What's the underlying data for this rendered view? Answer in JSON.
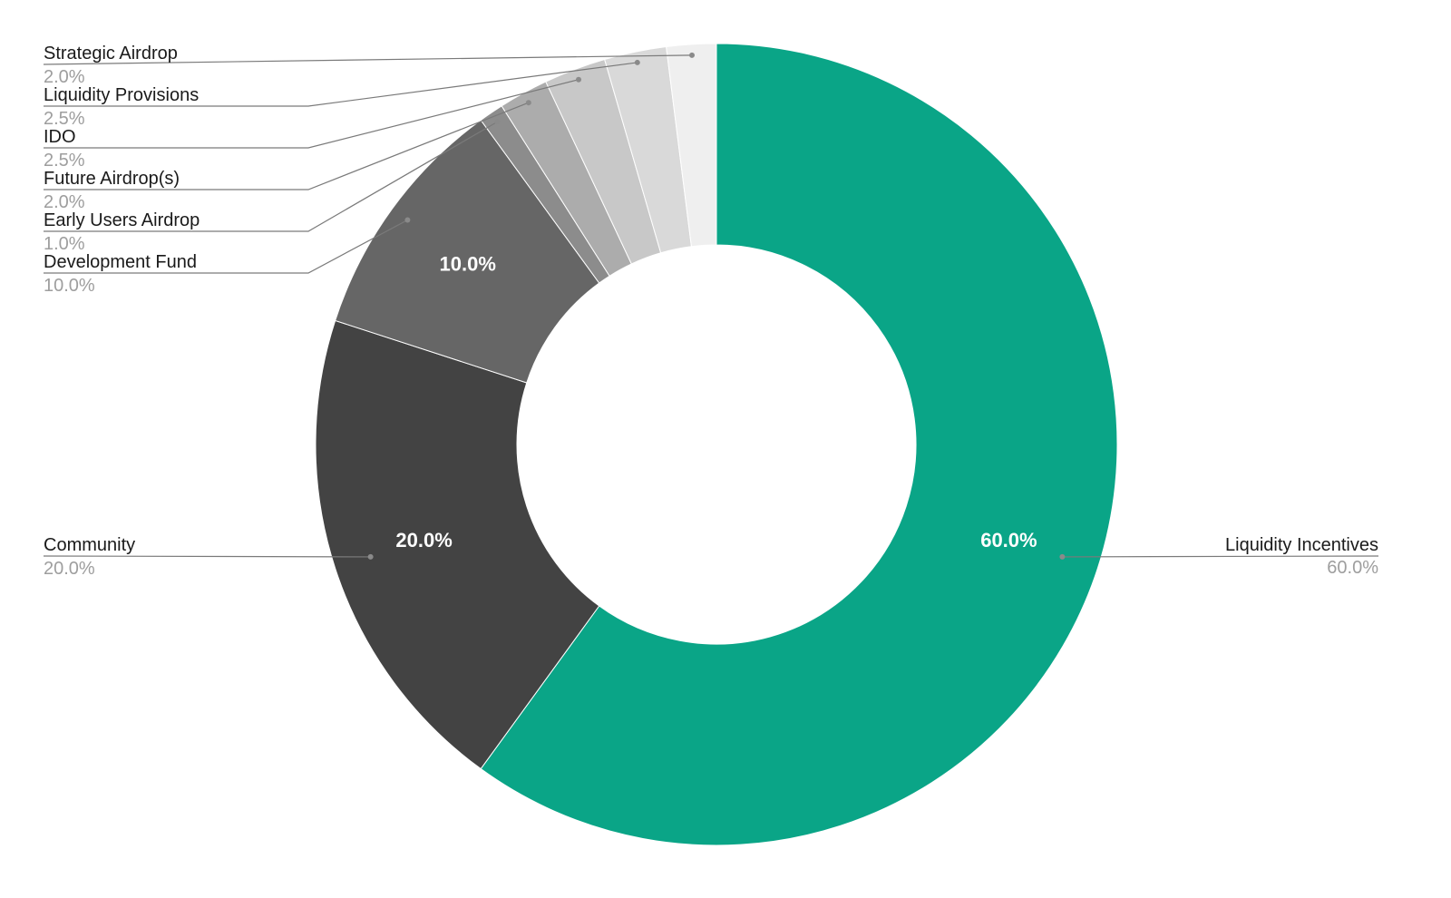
{
  "chart_data": {
    "type": "pie",
    "variant": "donut",
    "title": "",
    "slices": [
      {
        "name": "Liquidity Incentives",
        "value": 60.0,
        "pct_label": "60.0%",
        "color": "#0aa587",
        "inner_label": "60.0%"
      },
      {
        "name": "Community",
        "value": 20.0,
        "pct_label": "20.0%",
        "color": "#434343",
        "inner_label": "20.0%"
      },
      {
        "name": "Development Fund",
        "value": 10.0,
        "pct_label": "10.0%",
        "color": "#666666",
        "inner_label": "10.0%"
      },
      {
        "name": "Early Users Airdrop",
        "value": 1.0,
        "pct_label": "1.0%",
        "color": "#8c8c8c",
        "inner_label": ""
      },
      {
        "name": "Future Airdrop(s)",
        "value": 2.0,
        "pct_label": "2.0%",
        "color": "#acacac",
        "inner_label": ""
      },
      {
        "name": "IDO",
        "value": 2.5,
        "pct_label": "2.5%",
        "color": "#c8c8c8",
        "inner_label": ""
      },
      {
        "name": "Liquidity Provisions",
        "value": 2.5,
        "pct_label": "2.5%",
        "color": "#d9d9d9",
        "inner_label": ""
      },
      {
        "name": "Strategic Airdrop",
        "value": 2.0,
        "pct_label": "2.0%",
        "color": "#efefef",
        "inner_label": ""
      }
    ],
    "start_angle_deg": 0,
    "direction": "clockwise",
    "legend": "none (callout labels)"
  }
}
